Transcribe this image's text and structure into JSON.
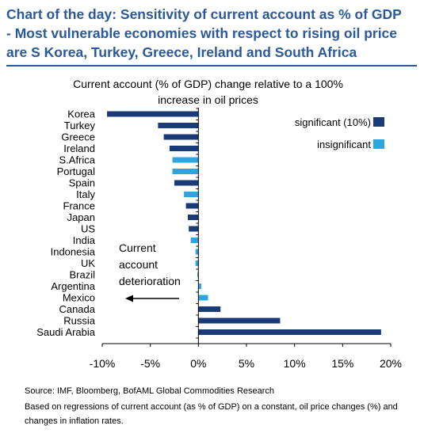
{
  "title_lines": [
    "Chart of the day: Sensitivity of current account as % of GDP",
    "- Most vulnerable economies with respect to rising oil price",
    "are S Korea, Turkey, Greece, Ireland and South Africa"
  ],
  "chart_data": {
    "type": "bar",
    "orientation": "horizontal",
    "title": "Current account (% of GDP) change relative to a 100% increase in oil prices",
    "categories": [
      "Korea",
      "Turkey",
      "Greece",
      "Ireland",
      "S.Africa",
      "Portugal",
      "Spain",
      "Italy",
      "France",
      "Japan",
      "US",
      "India",
      "Indonesia",
      "UK",
      "Brazil",
      "Argentina",
      "Mexico",
      "Canada",
      "Russia",
      "Saudi Arabia"
    ],
    "values": [
      -9.5,
      -4.2,
      -3.6,
      -3.0,
      -2.7,
      -2.7,
      -2.5,
      -1.5,
      -1.3,
      -1.1,
      -1.0,
      -0.8,
      -0.3,
      -0.3,
      -0.1,
      0.3,
      1.0,
      2.3,
      8.5,
      19.0
    ],
    "significance": [
      "significant",
      "significant",
      "significant",
      "significant",
      "insignificant",
      "insignificant",
      "significant",
      "insignificant",
      "significant",
      "significant",
      "significant",
      "insignificant",
      "insignificant",
      "insignificant",
      "insignificant",
      "insignificant",
      "insignificant",
      "significant",
      "significant",
      "significant"
    ],
    "xlim": [
      -10,
      20
    ],
    "xticks": [
      -10,
      -5,
      0,
      5,
      10,
      15,
      20
    ],
    "xtick_labels": [
      "-10%",
      "-5%",
      "0%",
      "5%",
      "10%",
      "15%",
      "20%"
    ],
    "legend": [
      {
        "name": "significant (10%)",
        "key": "significant",
        "color": "#1b3a78"
      },
      {
        "name": "insignificant",
        "key": "insignificant",
        "color": "#2aa6e0"
      }
    ],
    "legend_position": "top-right",
    "annotation_lines": [
      "Current",
      "account",
      "deterioration"
    ],
    "grid": false
  },
  "footer": {
    "source": "Source: IMF,  Bloomberg, BofAML Global Commodities Research",
    "note": "Based on regressions of current account (as % of GDP) on a constant, oil price changes (%) and changes in inflation rates."
  }
}
